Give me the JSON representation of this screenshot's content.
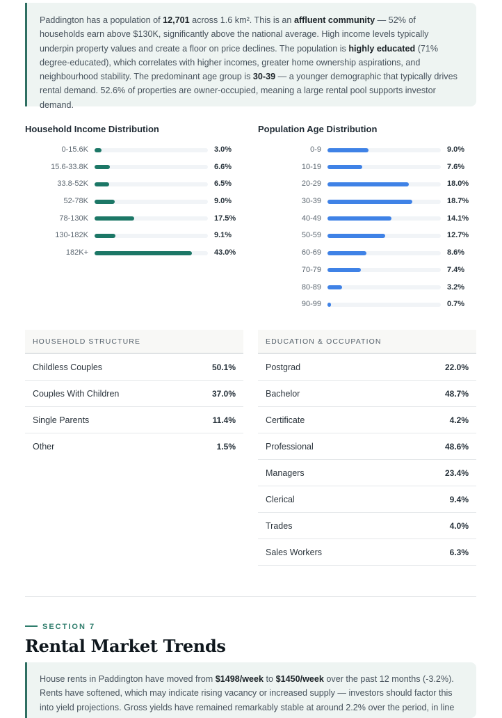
{
  "intro": {
    "t1": "Paddington has a population of ",
    "population": "12,701",
    "t2": " across 1.6 km². This is an ",
    "affluent": "affluent community",
    "t3": " — 52% of households earn above $130K, significantly above the national average. High income levels typically underpin property values and create a floor on price declines. The population is ",
    "educated": "highly educated",
    "t4": " (71% degree-educated), which correlates with higher incomes, greater home ownership aspirations, and neighbourhood stability. The predominant age group is ",
    "age_group": "30-39",
    "t5": " — a younger demographic that typically drives rental demand. 52.6% of properties are owner-occupied, meaning a large rental pool supports investor demand."
  },
  "chart_data": [
    {
      "type": "bar",
      "title": "Household Income Distribution",
      "categories": [
        "0-15.6K",
        "15.6-33.8K",
        "33.8-52K",
        "52-78K",
        "78-130K",
        "130-182K",
        "182K+"
      ],
      "values": [
        3.0,
        6.6,
        6.5,
        9.0,
        17.5,
        9.1,
        43.0
      ],
      "value_labels": [
        "3.0%",
        "6.6%",
        "6.5%",
        "9.0%",
        "17.5%",
        "9.1%",
        "43.0%"
      ],
      "color": "#1c7766",
      "xlim": [
        0,
        50
      ]
    },
    {
      "type": "bar",
      "title": "Population Age Distribution",
      "categories": [
        "0-9",
        "10-19",
        "20-29",
        "30-39",
        "40-49",
        "50-59",
        "60-69",
        "70-79",
        "80-89",
        "90-99"
      ],
      "values": [
        9.0,
        7.6,
        18.0,
        18.7,
        14.1,
        12.7,
        8.6,
        7.4,
        3.2,
        0.7
      ],
      "value_labels": [
        "9.0%",
        "7.6%",
        "18.0%",
        "18.7%",
        "14.1%",
        "12.7%",
        "8.6%",
        "7.4%",
        "3.2%",
        "0.7%"
      ],
      "color": "#3f82e6",
      "xlim": [
        0,
        25
      ]
    }
  ],
  "household": {
    "header": "HOUSEHOLD STRUCTURE",
    "rows": [
      {
        "label": "Childless Couples",
        "value": "50.1%"
      },
      {
        "label": "Couples With Children",
        "value": "37.0%"
      },
      {
        "label": "Single Parents",
        "value": "11.4%"
      },
      {
        "label": "Other",
        "value": "1.5%"
      }
    ]
  },
  "education": {
    "header": "EDUCATION & OCCUPATION",
    "rows": [
      {
        "label": "Postgrad",
        "value": "22.0%"
      },
      {
        "label": "Bachelor",
        "value": "48.7%"
      },
      {
        "label": "Certificate",
        "value": "4.2%"
      },
      {
        "label": "Professional",
        "value": "48.6%"
      },
      {
        "label": "Managers",
        "value": "23.4%"
      },
      {
        "label": "Clerical",
        "value": "9.4%"
      },
      {
        "label": "Trades",
        "value": "4.0%"
      },
      {
        "label": "Sales Workers",
        "value": "6.3%"
      }
    ]
  },
  "section": {
    "label": "SECTION 7",
    "title": "Rental Market Trends"
  },
  "rent": {
    "t1": "House rents in Paddington have moved from ",
    "from": "$1498/week",
    "t2": " to ",
    "to": "$1450/week",
    "t3": " over the past 12 months (-3.2%). Rents have softened, which may indicate rising vacancy or increased supply — investors should factor this into yield projections. Gross yields have remained remarkably stable at around 2.2% over the period, in line"
  }
}
